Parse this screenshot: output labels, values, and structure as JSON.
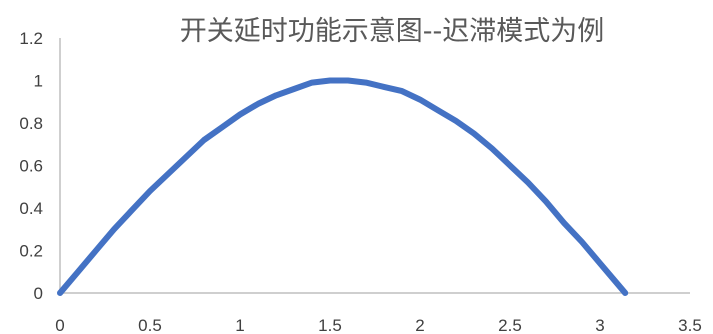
{
  "chart_data": {
    "type": "line",
    "title": "开关延时功能示意图--迟滞模式为例",
    "xlabel": "",
    "ylabel": "",
    "xlim": [
      0,
      3.5
    ],
    "ylim": [
      0,
      1.2
    ],
    "x_ticks": [
      "0",
      "0.5",
      "1",
      "1.5",
      "2",
      "2.5",
      "3",
      "3.5"
    ],
    "y_ticks": [
      "0",
      "0.2",
      "0.4",
      "0.6",
      "0.8",
      "1",
      "1.2"
    ],
    "grid": false,
    "legend": "none",
    "series": [
      {
        "color": "#4472c4",
        "x": [
          0,
          0.1,
          0.2,
          0.3,
          0.4,
          0.5,
          0.6,
          0.7,
          0.8,
          0.9,
          1.0,
          1.1,
          1.2,
          1.3,
          1.4,
          1.5,
          1.6,
          1.7,
          1.8,
          1.9,
          2.0,
          2.1,
          2.2,
          2.3,
          2.4,
          2.5,
          2.6,
          2.7,
          2.8,
          2.9,
          3.0,
          3.1,
          3.14
        ],
        "y": [
          0,
          0.1,
          0.2,
          0.3,
          0.39,
          0.48,
          0.56,
          0.64,
          0.72,
          0.78,
          0.84,
          0.89,
          0.93,
          0.96,
          0.99,
          1.0,
          1.0,
          0.99,
          0.97,
          0.95,
          0.91,
          0.86,
          0.81,
          0.75,
          0.68,
          0.6,
          0.52,
          0.43,
          0.33,
          0.24,
          0.14,
          0.04,
          0
        ]
      }
    ]
  }
}
